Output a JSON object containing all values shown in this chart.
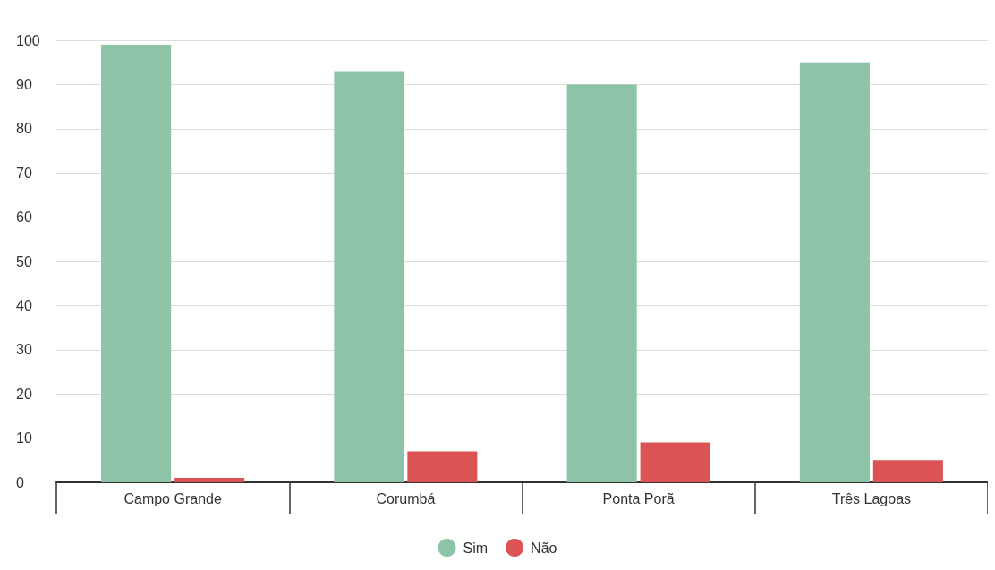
{
  "chart_data": {
    "type": "bar",
    "categories": [
      "Campo Grande",
      "Corumbá",
      "Ponta Porã",
      "Três Lagoas"
    ],
    "series": [
      {
        "name": "Sim",
        "color": "#8dc3a7",
        "values": [
          99,
          93,
          90,
          95
        ]
      },
      {
        "name": "Não",
        "color": "#dc5356",
        "values": [
          1,
          7,
          9,
          5
        ]
      }
    ],
    "ylim": [
      0,
      100
    ],
    "yticks": [
      0,
      10,
      20,
      30,
      40,
      50,
      60,
      70,
      80,
      90,
      100
    ],
    "grid": "y",
    "legend": "bottom"
  }
}
